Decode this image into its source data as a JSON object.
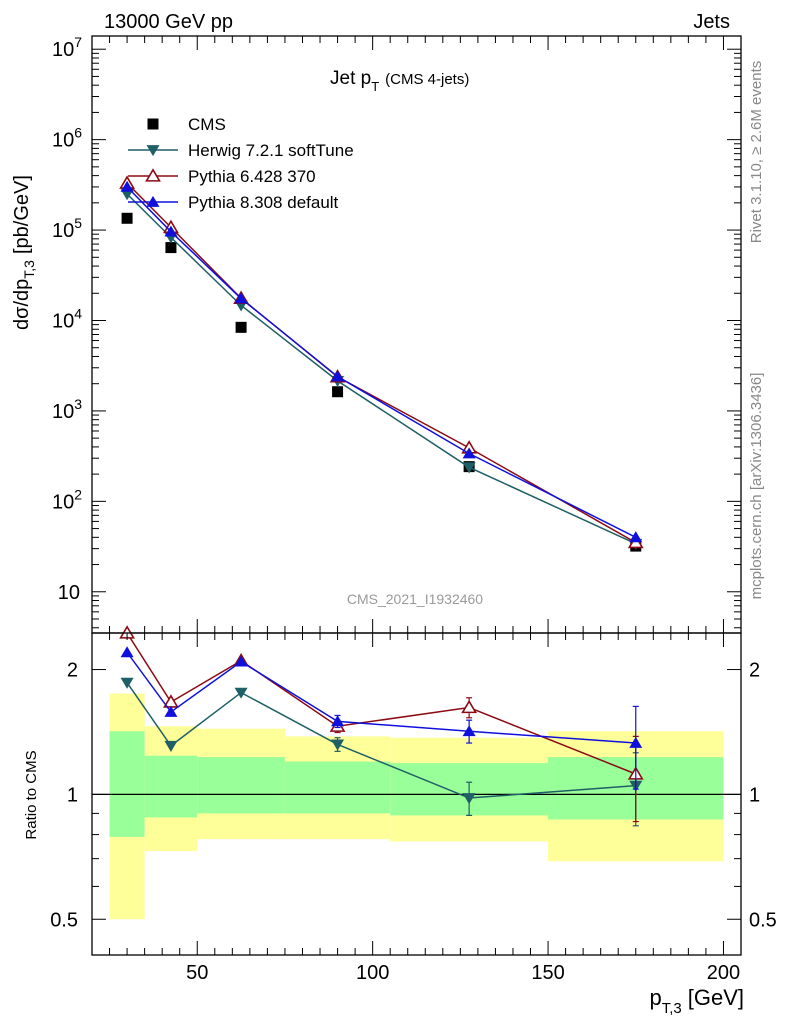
{
  "header": {
    "left": "13000 GeV pp",
    "right": "Jets"
  },
  "side_labels": {
    "rivet": "Rivet 3.1.10, ≥ 2.6M events",
    "mcplots": "mcplots.cern.ch [arXiv:1306.3436]"
  },
  "watermark": "CMS_2021_I1932460",
  "chart_data": [
    {
      "type": "line",
      "title": "Jet p_T (CMS 4-jets)",
      "title_main": "Jet p",
      "title_sub": "T",
      "title_note": "(CMS 4-jets)",
      "ylabel_main": "dσ/dp",
      "ylabel_sub": "T,3",
      "ylabel_unit": "[pb/GeV]",
      "y_scale": "log",
      "ylim": [
        3.5,
        14000000
      ],
      "xlim": [
        20,
        205
      ],
      "y_tick_labels": [
        {
          "value": 10,
          "label": "10"
        },
        {
          "value": 100,
          "label": "10",
          "exp": "2"
        },
        {
          "value": 1000,
          "label": "10",
          "exp": "3"
        },
        {
          "value": 10000,
          "label": "10",
          "exp": "4"
        },
        {
          "value": 100000,
          "label": "10",
          "exp": "5"
        },
        {
          "value": 1000000,
          "label": "10",
          "exp": "6"
        },
        {
          "value": 10000000,
          "label": "10",
          "exp": "7"
        }
      ],
      "legend_position": "top-left",
      "series": [
        {
          "name": "CMS",
          "marker": "square",
          "color": "#000000",
          "x": [
            30,
            42.5,
            62.5,
            90,
            127.5,
            175
          ],
          "y": [
            135000,
            64000,
            8400,
            1630,
            242,
            32
          ]
        },
        {
          "name": "Herwig 7.2.1 softTune",
          "marker": "triangle-down",
          "color": "#1f5f66",
          "x": [
            30,
            42.5,
            62.5,
            90,
            127.5,
            175
          ],
          "y": [
            250000,
            83000,
            14700,
            2150,
            238,
            34
          ]
        },
        {
          "name": "Pythia 6.428 370",
          "marker": "triangle-up-open",
          "color": "#8b0a14",
          "x": [
            30,
            42.5,
            62.5,
            90,
            127.5,
            175
          ],
          "y": [
            330000,
            107000,
            17600,
            2380,
            390,
            35
          ]
        },
        {
          "name": "Pythia 8.308 default",
          "marker": "triangle-up",
          "color": "#1010dd",
          "x": [
            30,
            42.5,
            62.5,
            90,
            127.5,
            175
          ],
          "y": [
            300000,
            96000,
            17500,
            2400,
            338,
            40
          ]
        }
      ]
    },
    {
      "type": "line",
      "ylabel": "Ratio to CMS",
      "xlabel_main": "p",
      "xlabel_sub": "T,3",
      "xlabel_unit": "[GeV]",
      "y_scale": "log",
      "ylim": [
        0.41,
        2.45
      ],
      "xlim": [
        20,
        205
      ],
      "x_tick_labels": [
        50,
        100,
        150,
        200
      ],
      "y_tick_labels": [
        {
          "value": 0.5,
          "label": "0.5"
        },
        {
          "value": 1,
          "label": "1"
        },
        {
          "value": 2,
          "label": "2"
        }
      ],
      "reference_line": 1,
      "uncertainty_bands": {
        "bins": [
          [
            25,
            35
          ],
          [
            35,
            50
          ],
          [
            50,
            75
          ],
          [
            75,
            105
          ],
          [
            105,
            150
          ],
          [
            150,
            200
          ]
        ],
        "inner": [
          [
            0.79,
            1.42
          ],
          [
            0.88,
            1.24
          ],
          [
            0.9,
            1.23
          ],
          [
            0.9,
            1.2
          ],
          [
            0.89,
            1.19
          ],
          [
            0.87,
            1.23
          ]
        ],
        "outer": [
          [
            0.5,
            1.75
          ],
          [
            0.73,
            1.46
          ],
          [
            0.78,
            1.44
          ],
          [
            0.78,
            1.38
          ],
          [
            0.77,
            1.37
          ],
          [
            0.69,
            1.42
          ]
        ],
        "inner_color": "#99ff99",
        "outer_color": "#ffff99"
      },
      "series": [
        {
          "name": "Herwig 7.2.1 softTune",
          "marker": "triangle-down",
          "color": "#1f5f66",
          "x": [
            30,
            42.5,
            62.5,
            90,
            127.5,
            175
          ],
          "y": [
            1.86,
            1.31,
            1.76,
            1.32,
            0.98,
            1.05
          ],
          "err": [
            0,
            0,
            0,
            0.05,
            0.09,
            0.21
          ]
        },
        {
          "name": "Pythia 6.428 370",
          "marker": "triangle-up-open",
          "color": "#8b0a14",
          "x": [
            30,
            42.5,
            62.5,
            90,
            127.5,
            175
          ],
          "y": [
            2.45,
            1.67,
            2.1,
            1.46,
            1.62,
            1.12
          ],
          "err": [
            0,
            0,
            0,
            0.05,
            0.09,
            0.26
          ]
        },
        {
          "name": "Pythia 8.308 default",
          "marker": "triangle-up",
          "color": "#1010dd",
          "x": [
            30,
            42.5,
            62.5,
            90,
            127.5,
            175
          ],
          "y": [
            2.2,
            1.58,
            2.09,
            1.5,
            1.42,
            1.33
          ],
          "err": [
            0,
            0,
            0,
            0.05,
            0.09,
            0.3
          ]
        }
      ]
    }
  ]
}
